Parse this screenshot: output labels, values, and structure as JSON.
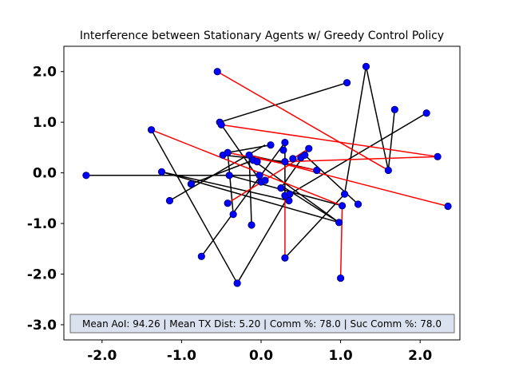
{
  "chart_data": {
    "type": "scatter",
    "title": "Interference between Stationary Agents w/ Greedy Control Policy",
    "xlabel": "",
    "ylabel": "",
    "xlim": [
      -2.48,
      2.5
    ],
    "ylim": [
      -3.3,
      2.5
    ],
    "x_ticks": [
      -2.0,
      -1.0,
      0.0,
      1.0,
      2.0
    ],
    "x_tick_labels": [
      "-2.0",
      "-1.0",
      "0.0",
      "1.0",
      "2.0"
    ],
    "y_ticks": [
      -3.0,
      -2.0,
      -1.0,
      0.0,
      1.0,
      2.0
    ],
    "y_tick_labels": [
      "-3.0",
      "-2.0",
      "-1.0",
      "0.0",
      "1.0",
      "2.0"
    ],
    "grid": false,
    "info_text": "Mean AoI: 94.26 | Mean TX Dist: 5.20 | Comm %: 78.0 | Suc Comm %: 78.0",
    "colors": {
      "point": "#0000ff",
      "point_edge": "#000066",
      "success_link": "#000000",
      "interference_link": "#ff0000",
      "info_box": "#d9e2ee",
      "info_box_edge": "#6b6b6b"
    },
    "points": [
      [
        -2.2,
        -0.05
      ],
      [
        -1.38,
        0.85
      ],
      [
        -1.25,
        0.02
      ],
      [
        -1.15,
        -0.55
      ],
      [
        -0.88,
        -0.22
      ],
      [
        -0.75,
        -1.65
      ],
      [
        -0.55,
        2.0
      ],
      [
        -0.52,
        1.0
      ],
      [
        -0.5,
        0.95
      ],
      [
        -0.48,
        0.35
      ],
      [
        -0.42,
        0.4
      ],
      [
        -0.42,
        -0.6
      ],
      [
        -0.4,
        -0.05
      ],
      [
        -0.35,
        -0.82
      ],
      [
        -0.3,
        -2.18
      ],
      [
        -0.15,
        0.35
      ],
      [
        -0.12,
        -1.03
      ],
      [
        -0.1,
        0.25
      ],
      [
        -0.05,
        0.22
      ],
      [
        -0.02,
        -0.05
      ],
      [
        0.0,
        -0.18
      ],
      [
        0.05,
        -0.15
      ],
      [
        0.12,
        0.55
      ],
      [
        0.25,
        -0.3
      ],
      [
        0.28,
        0.45
      ],
      [
        0.3,
        0.6
      ],
      [
        0.3,
        0.22
      ],
      [
        0.3,
        -0.45
      ],
      [
        0.3,
        -1.68
      ],
      [
        0.35,
        -0.55
      ],
      [
        0.36,
        -0.42
      ],
      [
        0.4,
        0.28
      ],
      [
        0.5,
        0.3
      ],
      [
        0.55,
        0.35
      ],
      [
        0.6,
        0.48
      ],
      [
        0.7,
        0.05
      ],
      [
        0.98,
        -0.98
      ],
      [
        1.0,
        -2.08
      ],
      [
        1.02,
        -0.65
      ],
      [
        1.05,
        -0.42
      ],
      [
        1.08,
        1.78
      ],
      [
        1.22,
        -0.62
      ],
      [
        1.32,
        2.1
      ],
      [
        1.6,
        0.05
      ],
      [
        1.68,
        1.25
      ],
      [
        2.08,
        1.18
      ],
      [
        2.22,
        0.32
      ],
      [
        2.35,
        -0.66
      ]
    ],
    "success_links": [
      [
        [
          -2.2,
          -0.05
        ],
        [
          -0.02,
          -0.05
        ]
      ],
      [
        [
          -1.38,
          0.85
        ],
        [
          -0.3,
          -2.18
        ]
      ],
      [
        [
          -0.3,
          -2.18
        ],
        [
          0.36,
          -0.42
        ]
      ],
      [
        [
          -1.25,
          0.02
        ],
        [
          0.98,
          -0.98
        ]
      ],
      [
        [
          -1.15,
          -0.55
        ],
        [
          0.05,
          0.55
        ]
      ],
      [
        [
          -0.88,
          -0.22
        ],
        [
          -0.1,
          0.25
        ]
      ],
      [
        [
          -0.75,
          -1.65
        ],
        [
          0.3,
          0.6
        ]
      ],
      [
        [
          -0.52,
          1.0
        ],
        [
          1.08,
          1.78
        ]
      ],
      [
        [
          -0.5,
          0.95
        ],
        [
          0.0,
          -0.18
        ]
      ],
      [
        [
          -0.48,
          0.35
        ],
        [
          0.3,
          0.22
        ]
      ],
      [
        [
          -0.42,
          0.4
        ],
        [
          -0.35,
          -0.82
        ]
      ],
      [
        [
          -0.4,
          -0.05
        ],
        [
          1.02,
          -0.65
        ]
      ],
      [
        [
          -0.12,
          -1.03
        ],
        [
          -0.15,
          0.35
        ]
      ],
      [
        [
          0.3,
          -1.68
        ],
        [
          1.05,
          -0.42
        ]
      ],
      [
        [
          1.05,
          -0.42
        ],
        [
          1.32,
          2.1
        ]
      ],
      [
        [
          1.32,
          2.1
        ],
        [
          1.6,
          0.05
        ]
      ],
      [
        [
          1.6,
          0.05
        ],
        [
          1.68,
          1.25
        ]
      ],
      [
        [
          0.36,
          -0.42
        ],
        [
          2.08,
          1.18
        ]
      ],
      [
        [
          0.3,
          -0.45
        ],
        [
          0.3,
          0.6
        ]
      ],
      [
        [
          0.55,
          0.35
        ],
        [
          1.22,
          -0.62
        ]
      ],
      [
        [
          0.6,
          0.48
        ],
        [
          0.25,
          -0.3
        ]
      ],
      [
        [
          -0.42,
          0.4
        ],
        [
          0.12,
          0.55
        ]
      ],
      [
        [
          -1.25,
          0.02
        ],
        [
          0.35,
          -0.55
        ]
      ],
      [
        [
          0.7,
          0.05
        ],
        [
          -0.15,
          0.35
        ]
      ],
      [
        [
          0.98,
          -0.98
        ],
        [
          0.3,
          -0.3
        ]
      ],
      [
        [
          -0.1,
          0.25
        ],
        [
          0.98,
          -0.98
        ]
      ]
    ],
    "interference_links": [
      [
        [
          -0.55,
          2.0
        ],
        [
          1.6,
          0.05
        ]
      ],
      [
        [
          -1.38,
          0.85
        ],
        [
          1.02,
          -0.65
        ]
      ],
      [
        [
          -0.5,
          0.95
        ],
        [
          2.22,
          0.32
        ]
      ],
      [
        [
          -0.42,
          -0.6
        ],
        [
          0.55,
          0.35
        ]
      ],
      [
        [
          -0.42,
          0.4
        ],
        [
          0.7,
          0.05
        ]
      ],
      [
        [
          -0.15,
          0.35
        ],
        [
          2.35,
          -0.66
        ]
      ],
      [
        [
          0.3,
          0.22
        ],
        [
          2.22,
          0.32
        ]
      ],
      [
        [
          0.3,
          -0.45
        ],
        [
          0.3,
          -1.68
        ]
      ],
      [
        [
          1.0,
          -2.08
        ],
        [
          1.02,
          -0.65
        ]
      ],
      [
        [
          0.4,
          0.28
        ],
        [
          0.6,
          0.48
        ]
      ]
    ]
  }
}
